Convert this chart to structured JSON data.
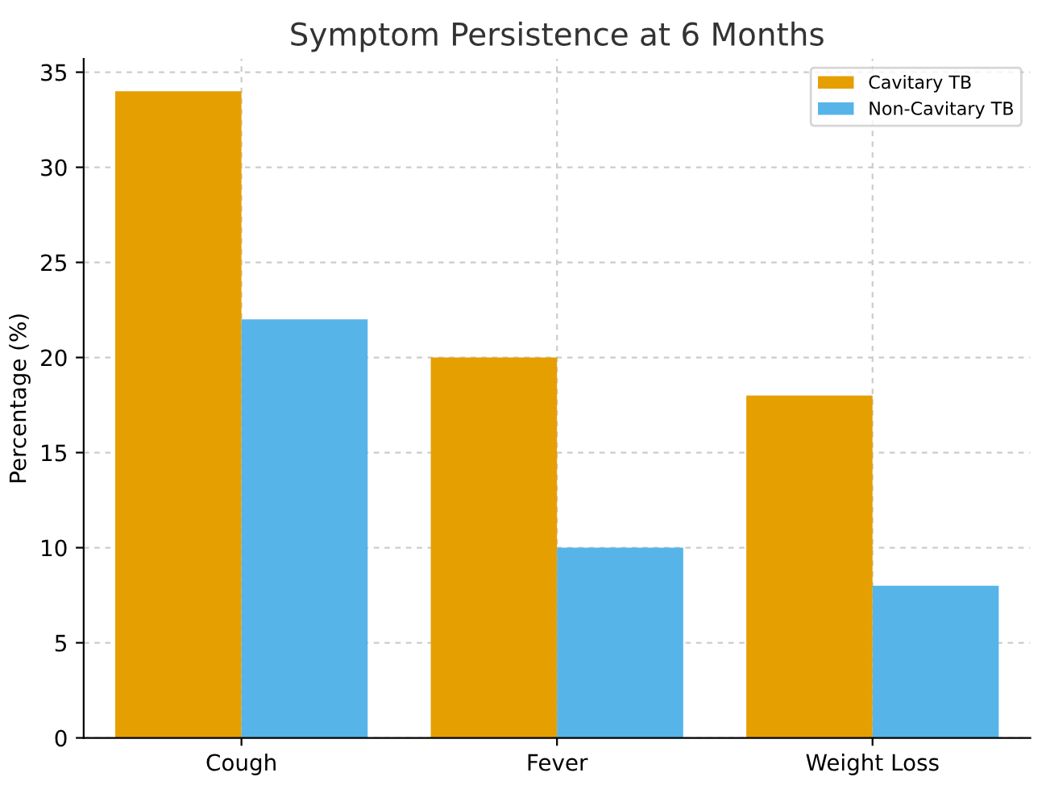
{
  "chart_data": {
    "type": "bar",
    "title": "Symptom Persistence at 6 Months",
    "ylabel": "Percentage (%)",
    "categories": [
      "Cough",
      "Fever",
      "Weight Loss"
    ],
    "series": [
      {
        "name": "Cavitary TB",
        "color": "#e69f00",
        "values": [
          34,
          20,
          18
        ]
      },
      {
        "name": "Non-Cavitary TB",
        "color": "#56b4e9",
        "values": [
          22,
          10,
          8
        ]
      }
    ],
    "ylim": [
      0,
      35.7
    ],
    "yticks": [
      0,
      5,
      10,
      15,
      20,
      25,
      30,
      35
    ],
    "grid": true,
    "legend": "top right"
  }
}
